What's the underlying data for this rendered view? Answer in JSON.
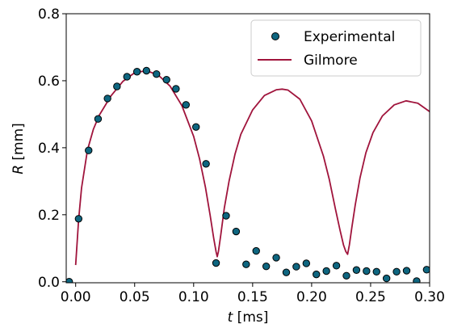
{
  "chart_data": {
    "type": "scatter",
    "xlabel_symbol": "t",
    "xlabel_unit": " [ms]",
    "ylabel_symbol": "R",
    "ylabel_unit": " [mm]",
    "xlim": [
      -0.008,
      0.3
    ],
    "ylim": [
      -0.003,
      0.8
    ],
    "x_ticks": [
      0.0,
      0.05,
      0.1,
      0.15,
      0.2,
      0.25,
      0.3
    ],
    "x_tick_labels": [
      "0.00",
      "0.05",
      "0.10",
      "0.15",
      "0.20",
      "0.25",
      "0.30"
    ],
    "y_ticks": [
      0.0,
      0.2,
      0.4,
      0.6,
      0.8
    ],
    "y_tick_labels": [
      "0.0",
      "0.2",
      "0.4",
      "0.6",
      "0.8"
    ],
    "legend_position": "top-right",
    "series": [
      {
        "name": "Experimental",
        "kind": "scatter",
        "color": "#0e6680",
        "edge_color": "#000000",
        "x": [
          -0.0055,
          0.0025,
          0.011,
          0.019,
          0.027,
          0.035,
          0.0435,
          0.052,
          0.06,
          0.0685,
          0.077,
          0.085,
          0.0935,
          0.102,
          0.1105,
          0.119,
          0.1275,
          0.136,
          0.1445,
          0.153,
          0.1615,
          0.17,
          0.1785,
          0.187,
          0.1955,
          0.204,
          0.2125,
          0.221,
          0.2295,
          0.238,
          0.2465,
          0.255,
          0.2635,
          0.272,
          0.2805,
          0.289,
          0.2975
        ],
        "y": [
          0.0,
          0.188,
          0.392,
          0.486,
          0.547,
          0.583,
          0.612,
          0.627,
          0.63,
          0.62,
          0.603,
          0.576,
          0.528,
          0.462,
          0.352,
          0.056,
          0.197,
          0.15,
          0.052,
          0.092,
          0.046,
          0.072,
          0.028,
          0.045,
          0.055,
          0.022,
          0.032,
          0.048,
          0.018,
          0.035,
          0.032,
          0.03,
          0.01,
          0.03,
          0.033,
          0.002,
          0.036
        ]
      },
      {
        "name": "Gilmore",
        "kind": "line",
        "color": "#a0143c",
        "x": [
          0.0,
          0.0025,
          0.005,
          0.01,
          0.015,
          0.02,
          0.03,
          0.04,
          0.05,
          0.06,
          0.07,
          0.08,
          0.09,
          0.1,
          0.105,
          0.11,
          0.114,
          0.117,
          0.119,
          0.12,
          0.121,
          0.123,
          0.126,
          0.13,
          0.135,
          0.14,
          0.15,
          0.16,
          0.17,
          0.175,
          0.18,
          0.19,
          0.2,
          0.21,
          0.215,
          0.22,
          0.224,
          0.227,
          0.229,
          0.2305,
          0.232,
          0.234,
          0.237,
          0.241,
          0.246,
          0.252,
          0.26,
          0.27,
          0.28,
          0.29,
          0.3
        ],
        "y": [
          0.05,
          0.185,
          0.28,
          0.393,
          0.455,
          0.497,
          0.555,
          0.598,
          0.624,
          0.63,
          0.617,
          0.584,
          0.526,
          0.434,
          0.367,
          0.282,
          0.198,
          0.13,
          0.09,
          0.075,
          0.09,
          0.14,
          0.22,
          0.3,
          0.38,
          0.44,
          0.513,
          0.556,
          0.573,
          0.575,
          0.572,
          0.545,
          0.48,
          0.375,
          0.305,
          0.22,
          0.155,
          0.11,
          0.09,
          0.082,
          0.11,
          0.16,
          0.23,
          0.31,
          0.385,
          0.445,
          0.495,
          0.528,
          0.54,
          0.533,
          0.508
        ]
      }
    ]
  }
}
